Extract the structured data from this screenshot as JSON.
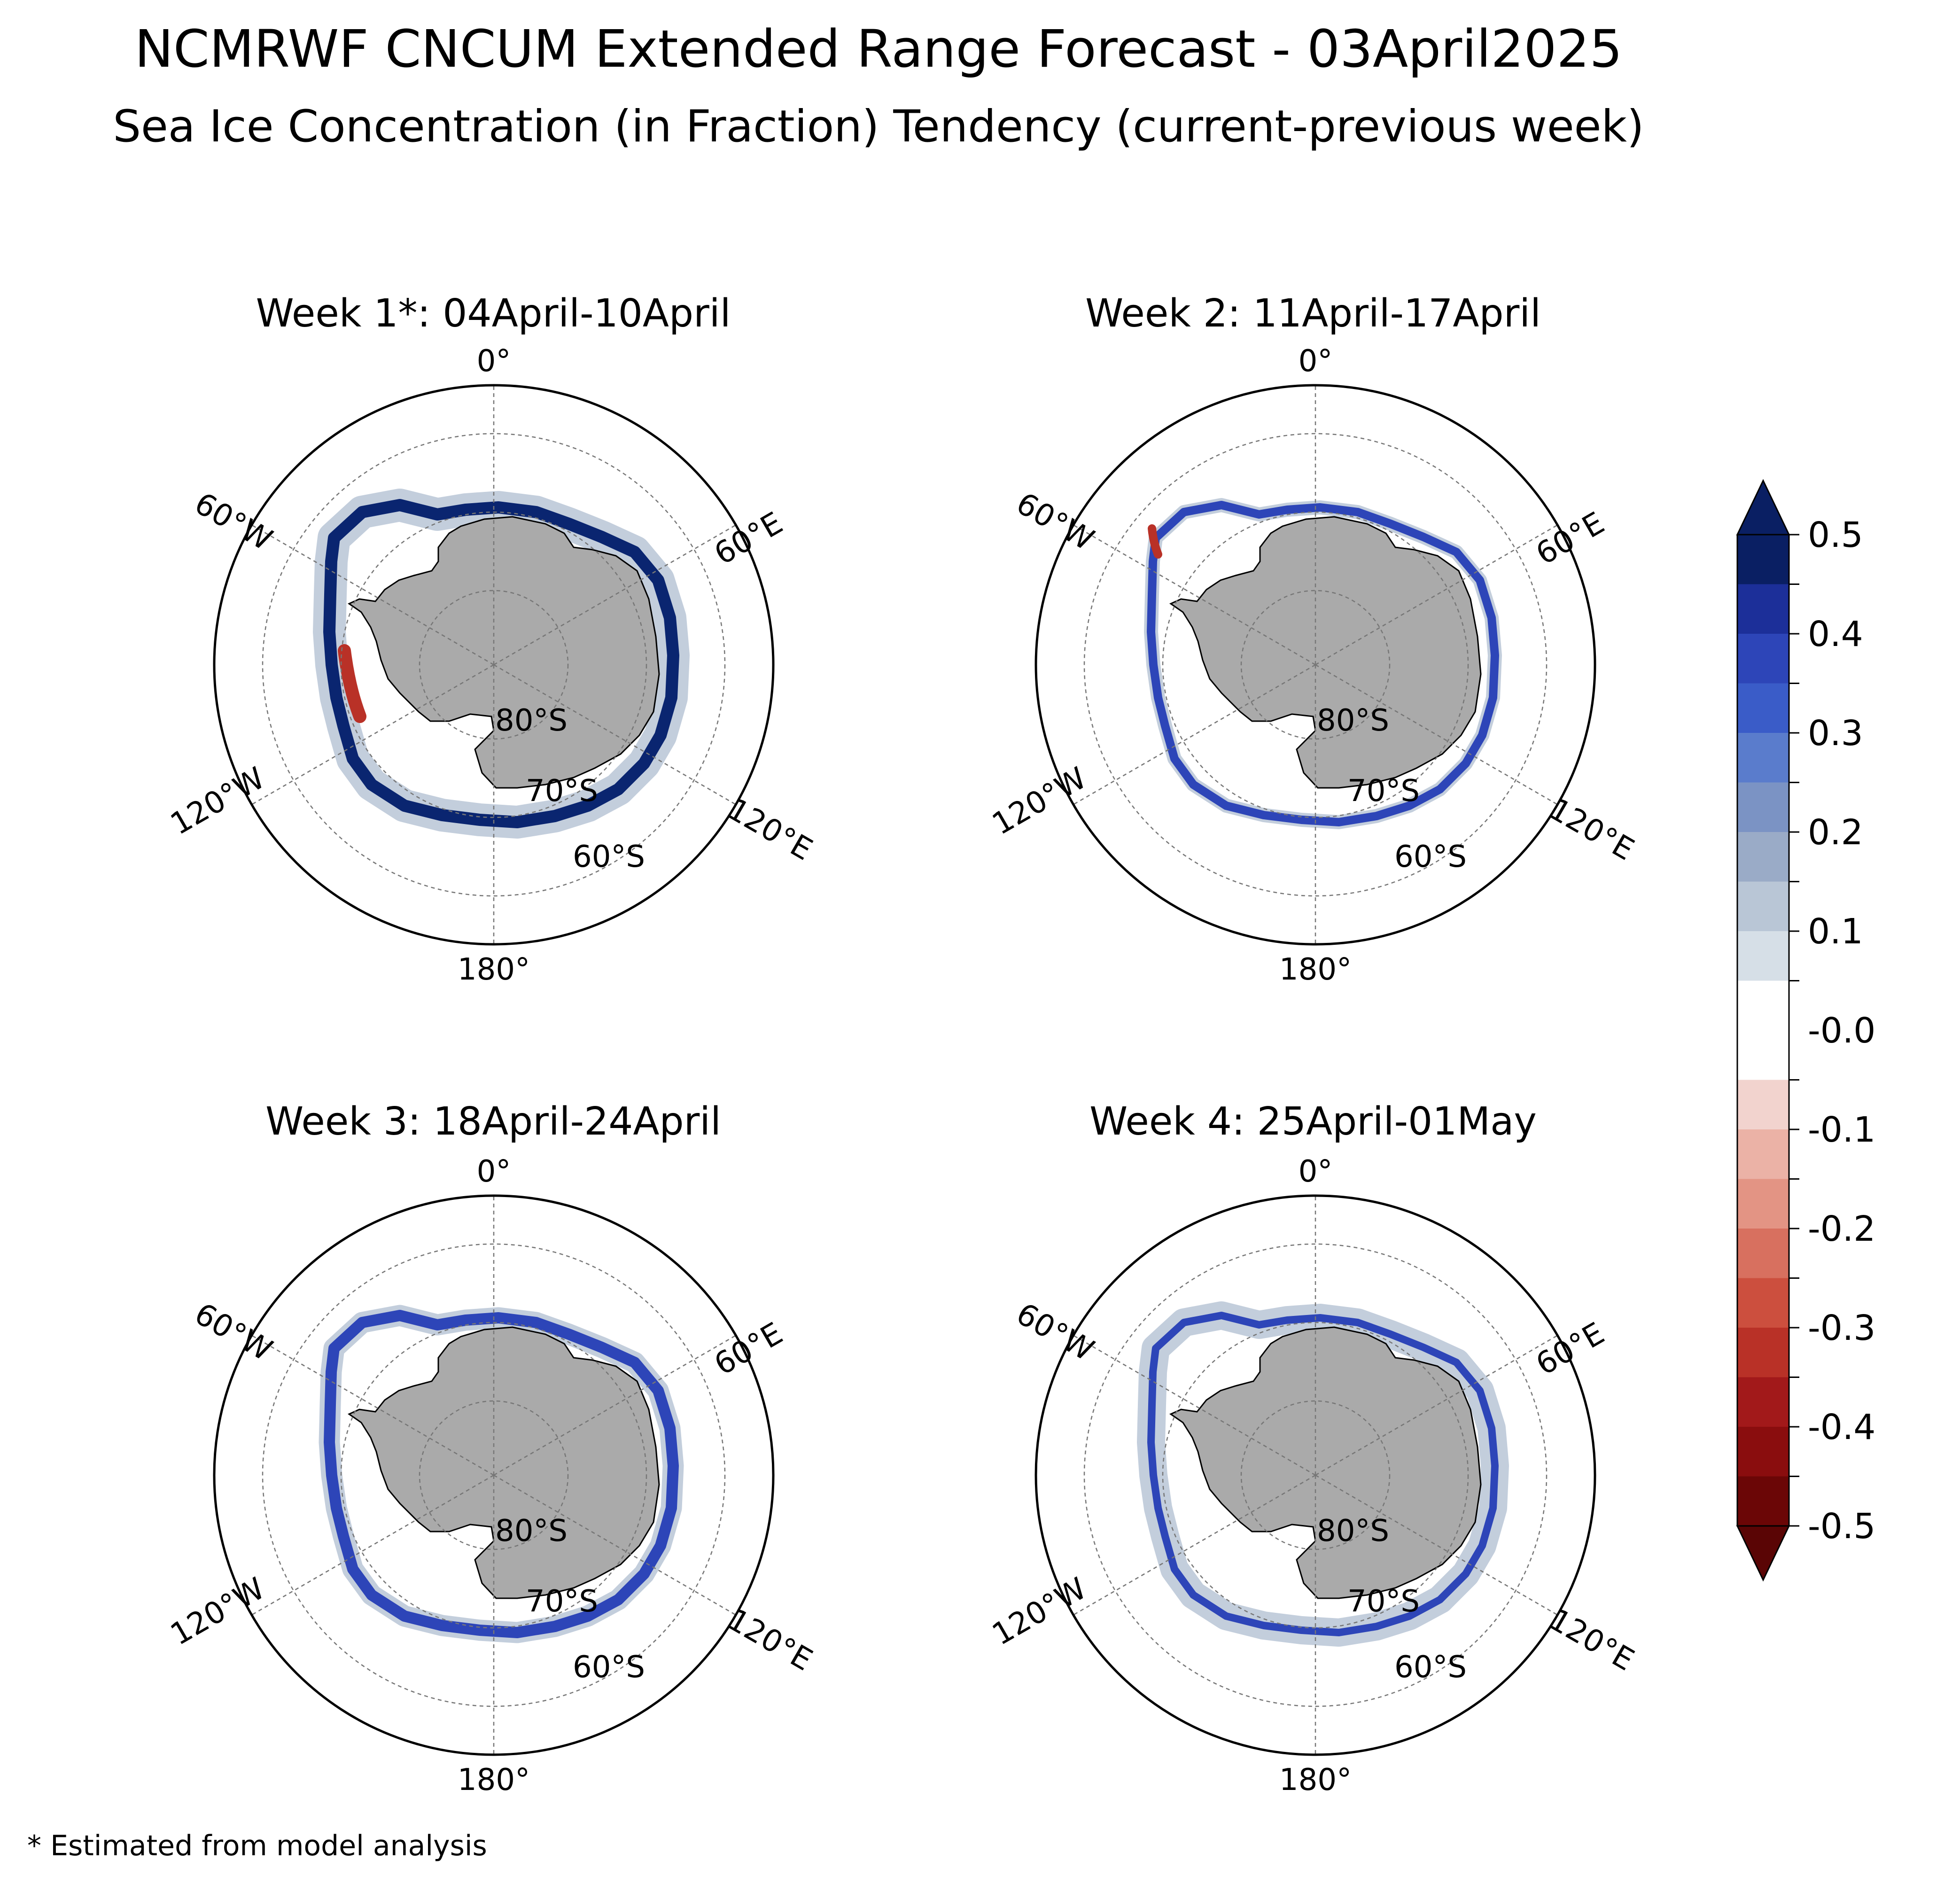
{
  "title": "NCMRWF CNCUM Extended Range Forecast - 03April2025",
  "subtitle": "Sea Ice Concentration (in Fraction) Tendency (current-previous week)",
  "footnote": "* Estimated from model analysis",
  "panels": [
    {
      "title": "Week 1*: 04April-10April"
    },
    {
      "title": "Week 2: 11April-17April"
    },
    {
      "title": "Week 3: 18April-24April"
    },
    {
      "title": "Week 4: 25April-01May"
    }
  ],
  "map_labels": {
    "lon_0": "0°",
    "lon_60e": "60°E",
    "lon_120e": "120°E",
    "lon_180": "180°",
    "lon_120w": "120°W",
    "lon_60w": "60°W",
    "lat_80": "80°S",
    "lat_70": "70°S",
    "lat_60": "60°S"
  },
  "colorbar": {
    "labels": [
      "0.5",
      "0.4",
      "0.3",
      "0.2",
      "0.1",
      "-0.0",
      "-0.1",
      "-0.2",
      "-0.3",
      "-0.4",
      "-0.5"
    ],
    "levels": [
      -0.5,
      -0.45,
      -0.4,
      -0.35,
      -0.3,
      -0.25,
      -0.2,
      -0.15,
      -0.1,
      -0.05,
      0.05,
      0.1,
      0.15,
      0.2,
      0.25,
      0.3,
      0.35,
      0.4,
      0.45,
      0.5
    ],
    "colors_high_to_low": [
      "#0a1f63",
      "#1c2f99",
      "#2d45b8",
      "#3a5cc8",
      "#5a7ccc",
      "#7b93c4",
      "#9aabc7",
      "#b9c6d6",
      "#d6dfe7",
      "#ffffff",
      "#f2d3ce",
      "#ebb2a6",
      "#e39484",
      "#d8705f",
      "#cc4f3e",
      "#b93127",
      "#a2191a",
      "#8a0d0e",
      "#6b0606"
    ],
    "extend_top_color": "#0a1f63",
    "extend_bottom_color": "#5a0505"
  },
  "land_color": "#aaaaaa",
  "ice_change_colors": {
    "strong_increase": "#0a2570",
    "increase": "#2d45b8",
    "light_increase": "#b9c6d6",
    "decrease": "#b93127"
  }
}
